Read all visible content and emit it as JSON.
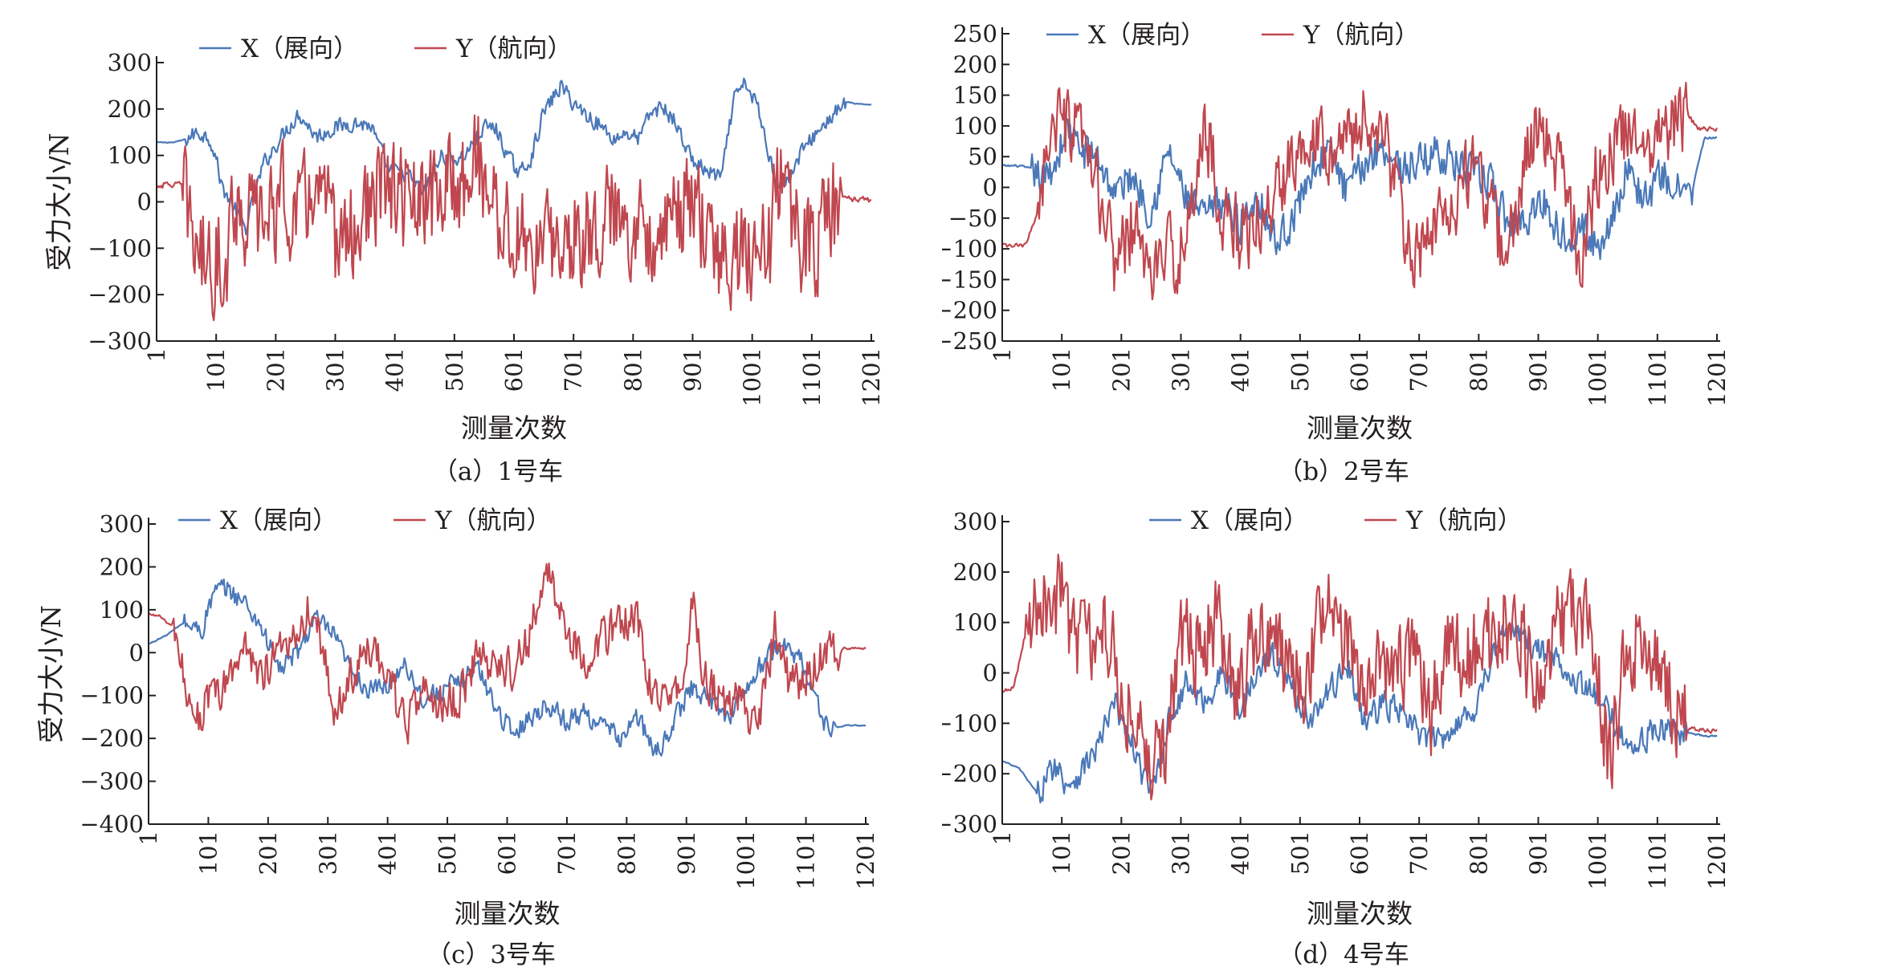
{
  "figure": {
    "colors": {
      "x_series": "#4a78b8",
      "y_series": "#c0474f",
      "axis": "#231f20"
    }
  },
  "chart_data": [
    {
      "type": "line",
      "caption": "（a）1号车",
      "xlabel": "测量次数",
      "ylabel": "受力大小/N",
      "xlim": [
        1,
        1201
      ],
      "xticks": [
        "1",
        "101",
        "201",
        "301",
        "401",
        "501",
        "601",
        "701",
        "801",
        "901",
        "1001",
        "1101",
        "1201"
      ],
      "ylim": [
        -300,
        300
      ],
      "yticks": [
        "300",
        "200",
        "100",
        "0",
        "−100",
        "−200",
        "−300"
      ],
      "legend_position": "top-left",
      "series": [
        {
          "name": "X（展向）",
          "color": "#4a78b8",
          "x": [
            1,
            30,
            50,
            70,
            90,
            100,
            110,
            130,
            150,
            180,
            210,
            240,
            270,
            300,
            330,
            360,
            390,
            420,
            450,
            480,
            510,
            530,
            550,
            570,
            590,
            610,
            630,
            650,
            680,
            700,
            720,
            750,
            770,
            790,
            810,
            830,
            850,
            870,
            900,
            930,
            950,
            970,
            990,
            1010,
            1020,
            1040,
            1060,
            1080,
            1100,
            1120,
            1140,
            1160,
            1180,
            1201
          ],
          "values": [
            128,
            128,
            135,
            150,
            138,
            100,
            35,
            -10,
            -60,
            80,
            140,
            190,
            140,
            160,
            170,
            165,
            70,
            60,
            20,
            100,
            90,
            120,
            160,
            160,
            100,
            60,
            95,
            190,
            250,
            215,
            190,
            160,
            135,
            150,
            135,
            190,
            205,
            175,
            90,
            60,
            55,
            220,
            255,
            205,
            150,
            50,
            40,
            100,
            135,
            165,
            190,
            215,
            210,
            210
          ],
          "noise": 22
        },
        {
          "name": "Y（航向）",
          "color": "#c0474f",
          "x": [
            1,
            30,
            45,
            60,
            80,
            100,
            120,
            130,
            150,
            180,
            210,
            240,
            270,
            300,
            330,
            360,
            390,
            420,
            450,
            480,
            510,
            540,
            570,
            600,
            630,
            660,
            690,
            720,
            750,
            780,
            810,
            840,
            870,
            900,
            930,
            960,
            990,
            1010,
            1030,
            1050,
            1080,
            1110,
            1130,
            1150,
            1170,
            1201
          ],
          "values": [
            35,
            38,
            35,
            -60,
            -120,
            -130,
            -110,
            10,
            -30,
            -40,
            10,
            -30,
            40,
            -80,
            -70,
            -10,
            30,
            0,
            -20,
            30,
            40,
            100,
            -20,
            -80,
            -90,
            -100,
            -80,
            -60,
            -40,
            -20,
            -60,
            -50,
            -40,
            0,
            -100,
            -120,
            -110,
            -80,
            -100,
            80,
            -80,
            -90,
            -30,
            10,
            5,
            5
          ],
          "noise": 140
        }
      ]
    },
    {
      "type": "line",
      "caption": "（b）2号车",
      "xlabel": "测量次数",
      "ylabel": "受力大小/N",
      "xlim": [
        1,
        1201
      ],
      "xticks": [
        "1",
        "101",
        "201",
        "301",
        "401",
        "501",
        "601",
        "701",
        "801",
        "901",
        "1001",
        "1101",
        "1201"
      ],
      "ylim": [
        -250,
        250
      ],
      "yticks": [
        "250",
        "200",
        "150",
        "100",
        "50",
        "0",
        "−50",
        "−100",
        "−150",
        "−200",
        "−250"
      ],
      "legend_position": "top-left",
      "series": [
        {
          "name": "X（展向）",
          "color": "#4a78b8",
          "x": [
            1,
            30,
            50,
            70,
            90,
            110,
            130,
            160,
            190,
            220,
            250,
            280,
            310,
            340,
            370,
            400,
            430,
            460,
            490,
            520,
            550,
            580,
            610,
            640,
            670,
            700,
            730,
            760,
            790,
            820,
            850,
            880,
            910,
            940,
            970,
            1000,
            1020,
            1050,
            1080,
            1110,
            1140,
            1160,
            1180,
            1201
          ],
          "values": [
            35,
            35,
            30,
            10,
            40,
            100,
            60,
            50,
            -10,
            20,
            -40,
            60,
            -20,
            -50,
            -20,
            -60,
            -10,
            -90,
            -50,
            30,
            60,
            -10,
            40,
            70,
            30,
            40,
            60,
            40,
            20,
            10,
            -60,
            -50,
            -20,
            -80,
            -60,
            -100,
            -60,
            30,
            -20,
            20,
            -10,
            0,
            80,
            80
          ],
          "noise": 38
        },
        {
          "name": "Y（航向）",
          "color": "#c0474f",
          "x": [
            1,
            40,
            60,
            80,
            100,
            130,
            160,
            190,
            220,
            250,
            280,
            310,
            340,
            370,
            400,
            430,
            460,
            490,
            520,
            550,
            580,
            610,
            640,
            670,
            700,
            730,
            760,
            790,
            820,
            850,
            880,
            910,
            940,
            970,
            1000,
            1030,
            1060,
            1090,
            1120,
            1150,
            1170,
            1201
          ],
          "values": [
            -95,
            -95,
            -40,
            90,
            100,
            80,
            0,
            -120,
            -60,
            -140,
            -110,
            -100,
            110,
            -40,
            -80,
            -60,
            -20,
            60,
            100,
            70,
            80,
            110,
            90,
            -40,
            -130,
            -60,
            -20,
            40,
            -40,
            -120,
            60,
            100,
            20,
            -120,
            30,
            60,
            100,
            80,
            100,
            120,
            95,
            95
          ],
          "noise": 75
        }
      ]
    },
    {
      "type": "line",
      "caption": "（c）3号车",
      "xlabel": "测量次数",
      "ylabel": "受力大小/N",
      "xlim": [
        1,
        1201
      ],
      "xticks": [
        "1",
        "101",
        "201",
        "301",
        "401",
        "501",
        "601",
        "701",
        "801",
        "901",
        "1001",
        "1101",
        "1201"
      ],
      "ylim": [
        -400,
        300
      ],
      "yticks": [
        "300",
        "200",
        "100",
        "0",
        "−100",
        "−200",
        "−300",
        "−400"
      ],
      "legend_position": "top-left",
      "series": [
        {
          "name": "X（展向）",
          "color": "#4a78b8",
          "x": [
            1,
            30,
            60,
            90,
            110,
            130,
            160,
            190,
            220,
            250,
            280,
            310,
            340,
            370,
            400,
            430,
            460,
            490,
            520,
            550,
            580,
            610,
            640,
            670,
            700,
            730,
            760,
            790,
            820,
            850,
            880,
            910,
            940,
            970,
            1000,
            1030,
            1060,
            1090,
            1110,
            1130,
            1150,
            1170,
            1201
          ],
          "values": [
            20,
            40,
            70,
            50,
            140,
            150,
            120,
            60,
            -40,
            0,
            80,
            40,
            -40,
            -90,
            -80,
            -20,
            -110,
            -90,
            -70,
            -30,
            -120,
            -190,
            -150,
            -120,
            -160,
            -140,
            -170,
            -200,
            -150,
            -240,
            -160,
            -80,
            -110,
            -150,
            -90,
            -20,
            20,
            -10,
            -80,
            -160,
            -175,
            -170,
            -170
          ],
          "noise": 30
        },
        {
          "name": "Y（航向）",
          "color": "#c0474f",
          "x": [
            1,
            20,
            40,
            60,
            80,
            100,
            130,
            160,
            190,
            220,
            250,
            280,
            310,
            340,
            370,
            400,
            430,
            460,
            490,
            520,
            550,
            580,
            610,
            640,
            660,
            680,
            700,
            730,
            760,
            790,
            820,
            840,
            870,
            900,
            910,
            930,
            960,
            990,
            1020,
            1050,
            1070,
            1090,
            1120,
            1140,
            1160,
            1180,
            1201
          ],
          "values": [
            90,
            85,
            60,
            -60,
            -150,
            -120,
            -80,
            20,
            -50,
            0,
            60,
            120,
            -150,
            -60,
            10,
            -30,
            -180,
            -100,
            -120,
            -110,
            -20,
            -20,
            -40,
            40,
            180,
            150,
            60,
            -20,
            40,
            60,
            80,
            -80,
            -100,
            -40,
            150,
            -50,
            -120,
            -110,
            -180,
            60,
            -60,
            -80,
            -20,
            10,
            10,
            10,
            10
          ],
          "noise": 60
        }
      ]
    },
    {
      "type": "line",
      "caption": "（d）4号车",
      "xlabel": "测量次数",
      "ylabel": "受力大小/N",
      "xlim": [
        1,
        1201
      ],
      "xticks": [
        "1",
        "101",
        "201",
        "301",
        "401",
        "501",
        "601",
        "701",
        "801",
        "901",
        "1001",
        "1101",
        "1201"
      ],
      "ylim": [
        -300,
        300
      ],
      "yticks": [
        "300",
        "200",
        "100",
        "0",
        "−100",
        "−200",
        "−300"
      ],
      "legend_position": "top-left",
      "series": [
        {
          "name": "X（展向）",
          "color": "#4a78b8",
          "x": [
            1,
            30,
            60,
            90,
            110,
            130,
            160,
            190,
            220,
            250,
            280,
            310,
            340,
            370,
            400,
            430,
            460,
            490,
            520,
            550,
            580,
            610,
            640,
            670,
            700,
            730,
            760,
            790,
            820,
            850,
            880,
            910,
            940,
            970,
            1000,
            1030,
            1060,
            1090,
            1120,
            1150,
            1180,
            1201
          ],
          "values": [
            -175,
            -190,
            -240,
            -180,
            -220,
            -200,
            -150,
            -60,
            -150,
            -240,
            -100,
            -20,
            -60,
            0,
            -80,
            20,
            30,
            -40,
            -90,
            -40,
            20,
            -100,
            -60,
            -80,
            -120,
            -140,
            -100,
            -80,
            20,
            100,
            60,
            40,
            20,
            -20,
            -50,
            -100,
            -150,
            -120,
            -110,
            -120,
            -125,
            -125
          ],
          "noise": 35
        },
        {
          "name": "Y（航向）",
          "color": "#c0474f",
          "x": [
            1,
            20,
            40,
            60,
            80,
            100,
            120,
            150,
            180,
            210,
            240,
            270,
            300,
            330,
            360,
            390,
            420,
            450,
            480,
            510,
            540,
            570,
            600,
            630,
            660,
            690,
            720,
            750,
            780,
            810,
            840,
            870,
            900,
            930,
            960,
            990,
            1020,
            1050,
            1080,
            1110,
            1130,
            1150,
            1180,
            1201
          ],
          "values": [
            -40,
            -30,
            80,
            140,
            150,
            160,
            80,
            60,
            80,
            -60,
            -150,
            -180,
            80,
            40,
            100,
            -40,
            40,
            60,
            0,
            -20,
            120,
            100,
            -40,
            60,
            0,
            20,
            -80,
            40,
            20,
            60,
            100,
            80,
            -40,
            100,
            120,
            80,
            -180,
            60,
            60,
            20,
            -80,
            -110,
            -115,
            -115
          ],
          "noise": 110
        }
      ]
    }
  ]
}
